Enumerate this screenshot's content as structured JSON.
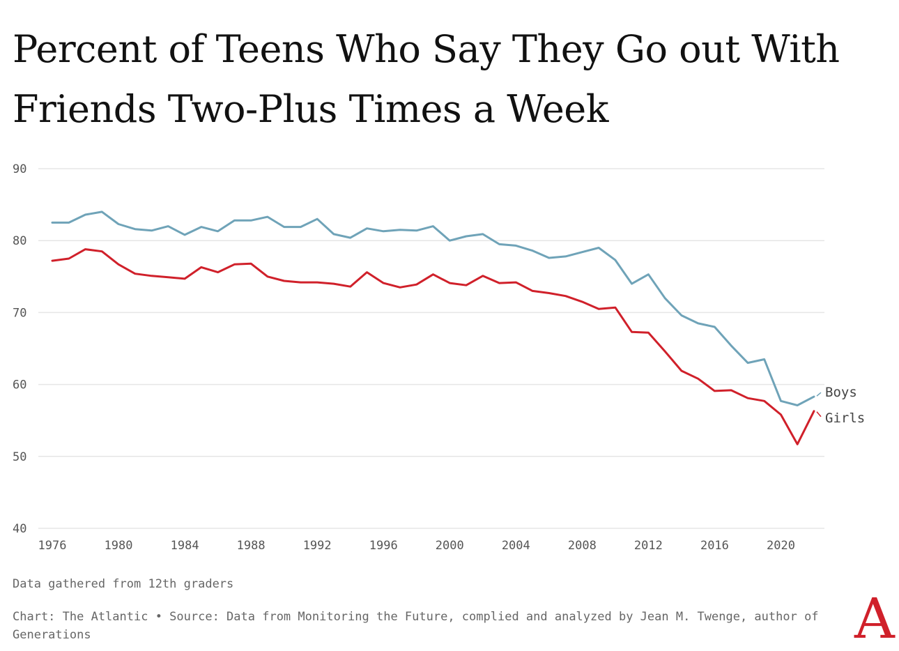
{
  "chart_data": {
    "type": "line",
    "title": "Percent of Teens Who Say They Go out With Friends Two-Plus Times a Week",
    "xlabel": "",
    "ylabel": "",
    "xlim": [
      1976,
      2022
    ],
    "ylim": [
      40,
      90
    ],
    "yticks": [
      "90",
      "80",
      "70",
      "60",
      "50",
      "40"
    ],
    "xticks": [
      "1976",
      "1980",
      "1984",
      "1988",
      "1992",
      "1996",
      "2000",
      "2004",
      "2008",
      "2012",
      "2016",
      "2020"
    ],
    "grid": true,
    "legend": "direct labels at line ends (right)",
    "x": [
      1976,
      1977,
      1978,
      1979,
      1980,
      1981,
      1982,
      1983,
      1984,
      1985,
      1986,
      1987,
      1988,
      1989,
      1990,
      1991,
      1992,
      1993,
      1994,
      1995,
      1996,
      1997,
      1998,
      1999,
      2000,
      2001,
      2002,
      2003,
      2004,
      2005,
      2006,
      2007,
      2008,
      2009,
      2010,
      2011,
      2012,
      2013,
      2014,
      2015,
      2016,
      2017,
      2018,
      2019,
      2020,
      2021,
      2022
    ],
    "series": [
      {
        "name": "Boys",
        "color": "#6fa3b8",
        "values": [
          82.5,
          82.5,
          83.6,
          84.0,
          82.3,
          81.6,
          81.4,
          82.0,
          80.8,
          81.9,
          81.3,
          82.8,
          82.8,
          83.3,
          81.9,
          81.9,
          83.0,
          80.9,
          80.4,
          81.7,
          81.3,
          81.5,
          81.4,
          82.0,
          80.0,
          80.6,
          80.9,
          79.5,
          79.3,
          78.6,
          77.6,
          77.8,
          78.4,
          79.0,
          77.3,
          74.0,
          75.3,
          72.0,
          69.6,
          68.5,
          68.0,
          65.4,
          63.0,
          63.5,
          57.7,
          57.1,
          58.3
        ]
      },
      {
        "name": "Girls",
        "color": "#d0202a",
        "values": [
          77.2,
          77.5,
          78.8,
          78.5,
          76.7,
          75.4,
          75.1,
          74.9,
          74.7,
          76.3,
          75.6,
          76.7,
          76.8,
          75.0,
          74.4,
          74.2,
          74.2,
          74.0,
          73.6,
          75.6,
          74.1,
          73.5,
          73.9,
          75.3,
          74.1,
          73.8,
          75.1,
          74.1,
          74.2,
          73.0,
          72.7,
          72.3,
          71.5,
          70.5,
          70.7,
          67.3,
          67.2,
          64.6,
          61.9,
          60.8,
          59.1,
          59.2,
          58.1,
          57.7,
          55.8,
          51.7,
          56.3
        ]
      }
    ]
  },
  "footer": {
    "note": "Data gathered from 12th graders",
    "source": "Chart: The Atlantic • Source: Data from Monitoring the Future, complied and analyzed by Jean M. Twenge, author of Generations",
    "logo": "A"
  }
}
